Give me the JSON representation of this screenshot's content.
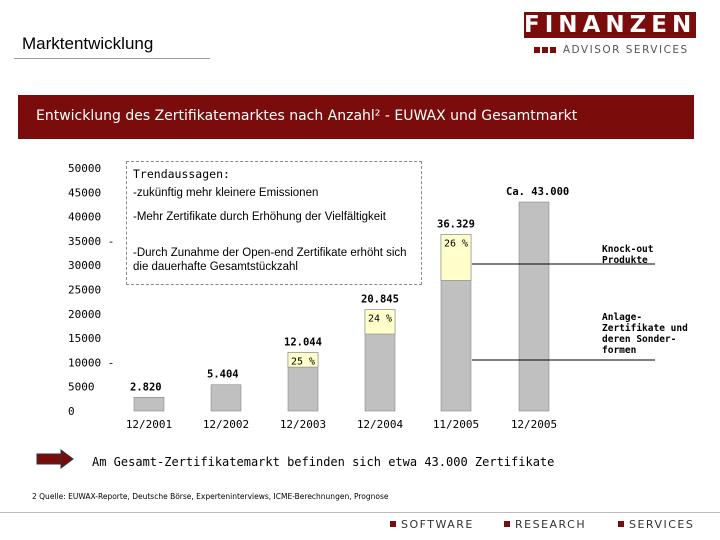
{
  "header": {
    "page_title": "Marktentwicklung",
    "logo_text": "FINANZEN",
    "logo_subtitle": "ADVISOR SERVICES"
  },
  "banner": {
    "title": "Entwicklung des Zertifikatemarktes nach Anzahl² - EUWAX und Gesamtmarkt"
  },
  "trend_box": {
    "title": "Trendaussagen:",
    "items": [
      "-zukünftig mehr kleinere Emissionen",
      "-Mehr Zertifikate durch Erhöhung der Vielfältigkeit",
      "-Durch Zunahme der Open-end Zertifikate erhöht sich die dauerhafte Gesamtstückzahl"
    ]
  },
  "side_labels": {
    "knockout": "Knock-out Produkte",
    "anlage": "Anlage- Zertifikate und deren Sonder- formen"
  },
  "bottom_statement": "Am Gesamt-Zertifikatemarkt befinden sich etwa 43.000 Zertifikate",
  "footnote": "2 Quelle: EUWAX-Reporte, Deutsche Börse, Experteninterviews, ICME-Berechnungen, Prognose",
  "footer": [
    "SOFTWARE",
    "RESEARCH",
    "SERVICES"
  ],
  "colors": {
    "brand": "#7a0c0c",
    "bar": "#c0c0c0",
    "knockout": "#ffffcc"
  },
  "chart_data": {
    "type": "bar",
    "categories": [
      "12/2001",
      "12/2002",
      "12/2003",
      "12/2004",
      "11/2005",
      "12/2005"
    ],
    "values": [
      2820,
      5404,
      12044,
      20845,
      36329,
      43000
    ],
    "value_labels": [
      "2.820",
      "5.404",
      "12.044",
      "20.845",
      "36.329",
      "Ca. 43.000"
    ],
    "knockout_share_labels": [
      "",
      "",
      "25 %",
      "24 %",
      "26 %",
      ""
    ],
    "knockout_share": [
      0,
      0,
      0.25,
      0.24,
      0.26,
      0
    ],
    "yticks": [
      0,
      5000,
      10000,
      15000,
      20000,
      25000,
      30000,
      35000,
      40000,
      45000,
      50000
    ],
    "ytick_labels": [
      "0",
      "5000",
      "10000 -",
      "15000",
      "20000",
      "25000",
      "30000",
      "35000 -",
      "40000",
      "45000",
      "50000"
    ],
    "ylim": [
      0,
      50000
    ]
  }
}
